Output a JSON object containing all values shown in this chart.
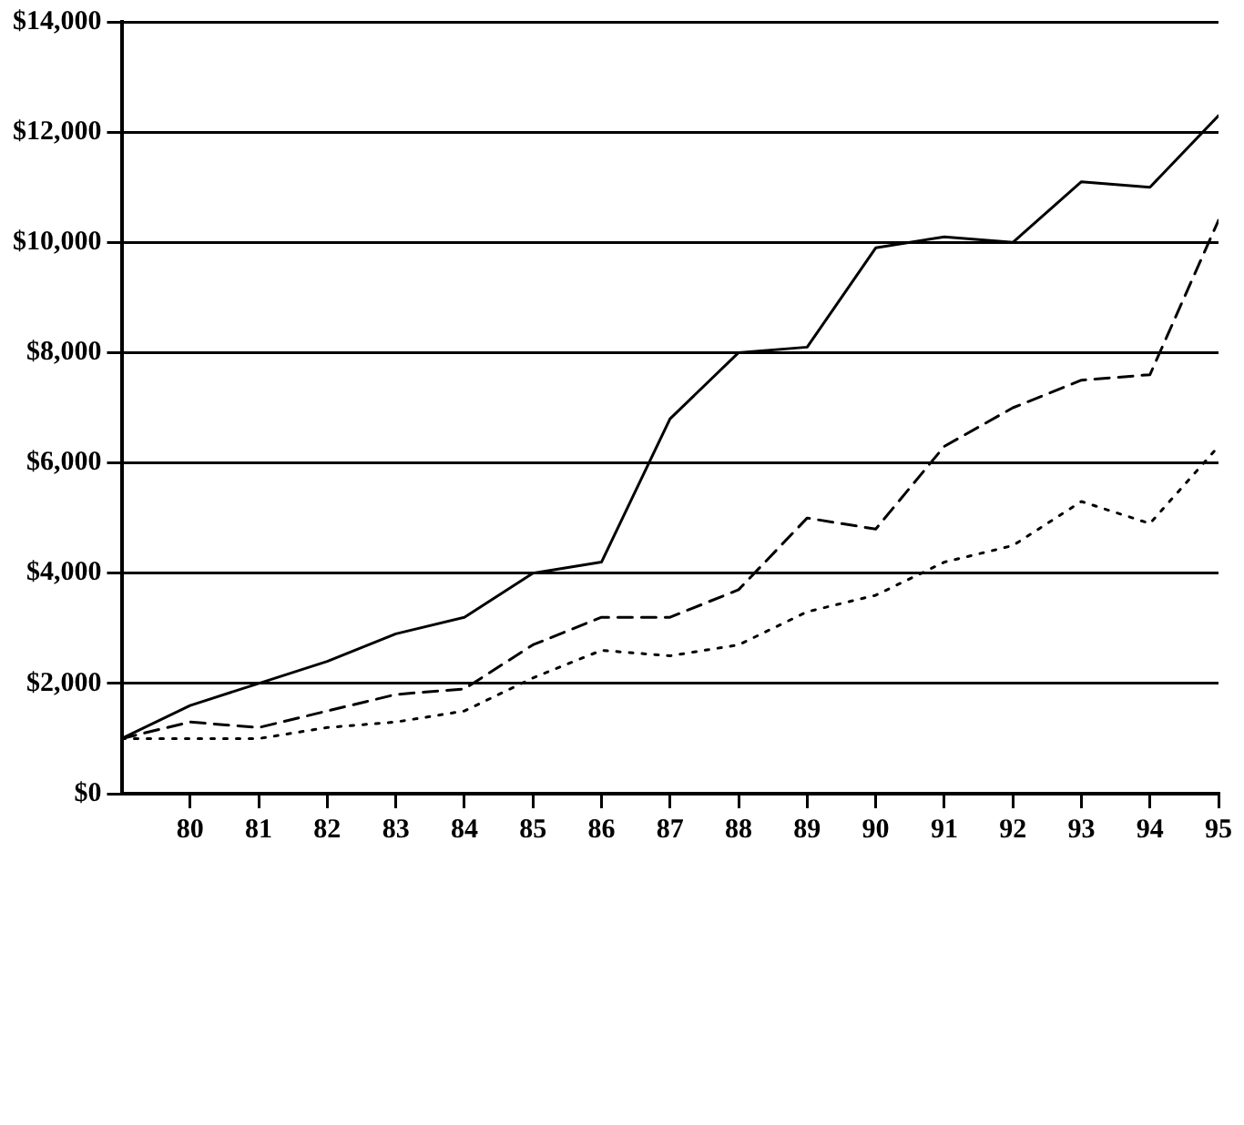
{
  "chart_data": {
    "type": "line",
    "x": [
      79,
      80,
      81,
      82,
      83,
      84,
      85,
      86,
      87,
      88,
      89,
      90,
      91,
      92,
      93,
      94,
      95
    ],
    "series": [
      {
        "color": "#000000",
        "line_style": "solid",
        "values": [
          1000,
          1600,
          2000,
          2400,
          2900,
          3200,
          4000,
          4200,
          6800,
          8000,
          8100,
          9900,
          10100,
          10000,
          11100,
          11000,
          12300
        ]
      },
      {
        "color": "#000000",
        "line_style": "dashed",
        "values": [
          1000,
          1300,
          1200,
          1500,
          1800,
          1900,
          2700,
          3200,
          3200,
          3700,
          5000,
          4800,
          6300,
          7000,
          7500,
          7600,
          10400
        ]
      },
      {
        "color": "#000000",
        "line_style": "dotted",
        "values": [
          1000,
          1000,
          1000,
          1200,
          1300,
          1500,
          2100,
          2600,
          2500,
          2700,
          3300,
          3600,
          4200,
          4500,
          5300,
          4900,
          6300
        ]
      }
    ],
    "xlim": [
      79,
      95
    ],
    "xticks": [
      80,
      81,
      82,
      83,
      84,
      85,
      86,
      87,
      88,
      89,
      90,
      91,
      92,
      93,
      94,
      95
    ],
    "ylim": [
      0,
      14000
    ],
    "yticks": [
      {
        "value": 0,
        "label": "$0"
      },
      {
        "value": 2000,
        "label": "$2,000"
      },
      {
        "value": 4000,
        "label": "$4,000"
      },
      {
        "value": 6000,
        "label": "$6,000"
      },
      {
        "value": 8000,
        "label": "$8,000"
      },
      {
        "value": 10000,
        "label": "$10,000"
      },
      {
        "value": 12000,
        "label": "$12,000"
      },
      {
        "value": 14000,
        "label": "$14,000"
      }
    ],
    "grid": "y",
    "legend": false,
    "marker": "none"
  }
}
